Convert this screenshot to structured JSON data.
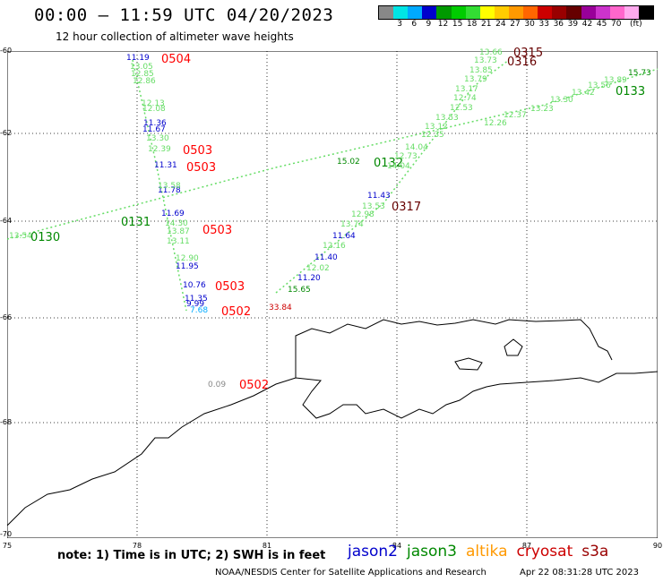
{
  "header": {
    "title": "00:00 – 11:59 UTC 04/20/2023",
    "subtitle": "12 hour collection of altimeter wave heights"
  },
  "legend": {
    "colors": [
      "#888888",
      "#00e5e5",
      "#00aaff",
      "#0000cc",
      "#009900",
      "#00cc00",
      "#33dd33",
      "#ffff00",
      "#ffcc00",
      "#ff9900",
      "#ff6600",
      "#cc0000",
      "#990000",
      "#660000",
      "#990099",
      "#cc33cc",
      "#ff66cc",
      "#ffaaee",
      "#000000"
    ],
    "labels": [
      "3",
      "6",
      "9",
      "12",
      "15",
      "18",
      "21",
      "24",
      "27",
      "30",
      "33",
      "36",
      "39",
      "42",
      "45",
      "70",
      "(ft)"
    ]
  },
  "map": {
    "lat_labels": [
      "-60",
      "-62",
      "-64",
      "-66",
      "-68",
      "-70"
    ],
    "lon_labels": [
      "75",
      "78",
      "81",
      "84",
      "87",
      "90"
    ],
    "lon_range": [
      75,
      90
    ],
    "lat_range": [
      -60,
      -70
    ]
  },
  "observations": [
    {
      "text": "11.19",
      "color": "#0000cc"
    },
    {
      "text": "0504",
      "color": "#ff0000"
    },
    {
      "text": "13.05",
      "color": "#66dd66"
    },
    {
      "text": "12.85",
      "color": "#66dd66"
    },
    {
      "text": "12.86",
      "color": "#66dd66"
    },
    {
      "text": "12.13",
      "color": "#66dd66"
    },
    {
      "text": "12.08",
      "color": "#66dd66"
    },
    {
      "text": "11.36",
      "color": "#0000cc"
    },
    {
      "text": "11.67",
      "color": "#0000cc"
    },
    {
      "text": "13.30",
      "color": "#66dd66"
    },
    {
      "text": "12.39",
      "color": "#66dd66"
    },
    {
      "text": "0503",
      "color": "#ff0000"
    },
    {
      "text": "11.31",
      "color": "#0000cc"
    },
    {
      "text": "0503",
      "color": "#ff0000"
    },
    {
      "text": "11.78",
      "color": "#0000cc"
    },
    {
      "text": "13.58",
      "color": "#66dd66"
    },
    {
      "text": "11.69",
      "color": "#0000cc"
    },
    {
      "text": "14.30",
      "color": "#66dd66"
    },
    {
      "text": "13.87",
      "color": "#66dd66"
    },
    {
      "text": "0503",
      "color": "#ff0000"
    },
    {
      "text": "13.11",
      "color": "#66dd66"
    },
    {
      "text": "12.90",
      "color": "#66dd66"
    },
    {
      "text": "11.95",
      "color": "#0000cc"
    },
    {
      "text": "10.76",
      "color": "#0000cc"
    },
    {
      "text": "0503",
      "color": "#ff0000"
    },
    {
      "text": "11.35",
      "color": "#0000cc"
    },
    {
      "text": "9.99",
      "color": "#0000cc"
    },
    {
      "text": "7.68",
      "color": "#00aaff"
    },
    {
      "text": "0502",
      "color": "#ff0000"
    },
    {
      "text": "33.84",
      "color": "#cc0000"
    },
    {
      "text": "0.09",
      "color": "#888888"
    },
    {
      "text": "0502",
      "color": "#ff0000"
    },
    {
      "text": "13.54",
      "color": "#66dd66"
    },
    {
      "text": "0130",
      "color": "#008800"
    },
    {
      "text": "0131",
      "color": "#008800"
    },
    {
      "text": "15.02",
      "color": "#008800"
    },
    {
      "text": "0132",
      "color": "#008800"
    },
    {
      "text": "0133",
      "color": "#008800"
    },
    {
      "text": "15.73",
      "color": "#008800"
    },
    {
      "text": "13.66",
      "color": "#66dd66"
    },
    {
      "text": "0315",
      "color": "#660000"
    },
    {
      "text": "13.73",
      "color": "#66dd66"
    },
    {
      "text": "0316",
      "color": "#660000"
    },
    {
      "text": "13.85",
      "color": "#66dd66"
    },
    {
      "text": "13.79",
      "color": "#66dd66"
    },
    {
      "text": "13.17",
      "color": "#66dd66"
    },
    {
      "text": "12.74",
      "color": "#66dd66"
    },
    {
      "text": "12.53",
      "color": "#66dd66"
    },
    {
      "text": "13.53",
      "color": "#66dd66"
    },
    {
      "text": "13.12",
      "color": "#66dd66"
    },
    {
      "text": "12.35",
      "color": "#66dd66"
    },
    {
      "text": "14.04",
      "color": "#66dd66"
    },
    {
      "text": "12.73",
      "color": "#66dd66"
    },
    {
      "text": "14.04",
      "color": "#66dd66"
    },
    {
      "text": "11.43",
      "color": "#0000cc"
    },
    {
      "text": "13.53",
      "color": "#66dd66"
    },
    {
      "text": "0317",
      "color": "#660000"
    },
    {
      "text": "12.98",
      "color": "#66dd66"
    },
    {
      "text": "13.74",
      "color": "#66dd66"
    },
    {
      "text": "11.64",
      "color": "#0000cc"
    },
    {
      "text": "12.16",
      "color": "#66dd66"
    },
    {
      "text": "11.40",
      "color": "#0000cc"
    },
    {
      "text": "12.02",
      "color": "#66dd66"
    },
    {
      "text": "11.20",
      "color": "#0000cc"
    },
    {
      "text": "15.65",
      "color": "#008800"
    },
    {
      "text": "12.26",
      "color": "#66dd66"
    },
    {
      "text": "12.37",
      "color": "#66dd66"
    },
    {
      "text": "13.23",
      "color": "#66dd66"
    },
    {
      "text": "13.30",
      "color": "#66dd66"
    },
    {
      "text": "13.42",
      "color": "#66dd66"
    },
    {
      "text": "13.56",
      "color": "#66dd66"
    },
    {
      "text": "13.89",
      "color": "#66dd66"
    }
  ],
  "footer": {
    "note": "note: 1) Time is in UTC; 2) SWH is in feet",
    "missions": [
      {
        "name": "jason2",
        "color": "#0000cc"
      },
      {
        "name": "jason3",
        "color": "#008800"
      },
      {
        "name": "altika",
        "color": "#ff9900"
      },
      {
        "name": "cryosat",
        "color": "#cc0000"
      },
      {
        "name": "s3a",
        "color": "#990000"
      }
    ],
    "credit": "NOAA/NESDIS Center for Satellite Applications and Research",
    "timestamp": "Apr 22 08:31:28 UTC 2023"
  }
}
